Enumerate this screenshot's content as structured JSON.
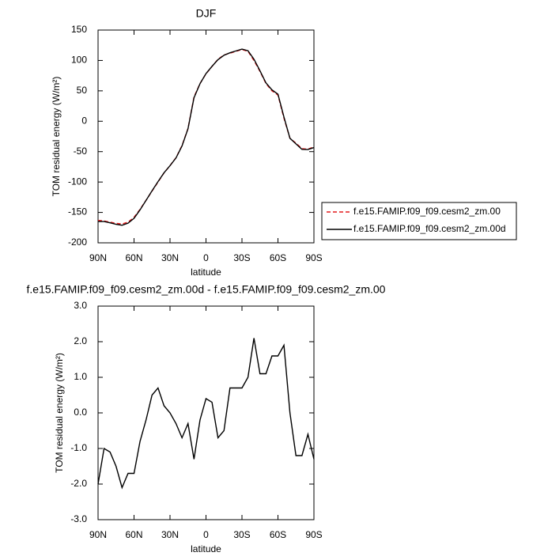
{
  "chart_data": [
    {
      "type": "line",
      "title": "DJF",
      "xlabel": "latitude",
      "ylabel": "TOM residual energy (W/m²)",
      "x": [
        90,
        85,
        80,
        75,
        70,
        65,
        60,
        55,
        50,
        45,
        40,
        35,
        30,
        25,
        20,
        15,
        10,
        5,
        0,
        -5,
        -10,
        -15,
        -20,
        -25,
        -30,
        -35,
        -40,
        -45,
        -50,
        -55,
        -60,
        -65,
        -70,
        -75,
        -80,
        -85,
        -90
      ],
      "xlim": [
        90,
        -90
      ],
      "xticks": [
        {
          "value": 90,
          "label": "90N"
        },
        {
          "value": 60,
          "label": "60N"
        },
        {
          "value": 30,
          "label": "30N"
        },
        0,
        {
          "value": -30,
          "label": "30S"
        },
        {
          "value": -60,
          "label": "60S"
        },
        {
          "value": -90,
          "label": "90S"
        }
      ],
      "ylim": [
        -200,
        150
      ],
      "yticks": [
        150,
        100,
        50,
        0,
        -50,
        -100,
        -150,
        -200
      ],
      "legend": "right",
      "series": [
        {
          "name": "f.e15.FAMIP.f09_f09.cesm2_zm.00",
          "color": "#e41a1c",
          "dash": true,
          "values": [
            -163,
            -164,
            -166,
            -168,
            -169,
            -166,
            -158,
            -145,
            -130,
            -115,
            -100,
            -85,
            -73,
            -60,
            -40,
            -12,
            40,
            62,
            78,
            90,
            102,
            109,
            112,
            115,
            118,
            115,
            100,
            82,
            62,
            50,
            43,
            5,
            -28,
            -36,
            -45,
            -46,
            -42
          ]
        },
        {
          "name": "f.e15.FAMIP.f09_f09.cesm2_zm.00d",
          "color": "#000000",
          "dash": false,
          "values": [
            -165,
            -165,
            -167.1,
            -169.5,
            -171.1,
            -167.7,
            -159.7,
            -145.8,
            -130.2,
            -114.5,
            -99.3,
            -84.8,
            -73,
            -60.3,
            -40.7,
            -12.3,
            38.7,
            61.8,
            78.4,
            90.3,
            101.3,
            108.5,
            112.7,
            115.7,
            118.7,
            116,
            102.1,
            83.1,
            63.1,
            51.6,
            44.6,
            6.9,
            -28,
            -37.2,
            -46.2,
            -46.6,
            -43.3
          ]
        }
      ]
    },
    {
      "type": "line",
      "title": "f.e15.FAMIP.f09_f09.cesm2_zm.00d - f.e15.FAMIP.f09_f09.cesm2_zm.00",
      "xlabel": "latitude",
      "ylabel": "TOM residual energy (W/m²)",
      "x": [
        90,
        85,
        80,
        75,
        70,
        65,
        60,
        55,
        50,
        45,
        40,
        35,
        30,
        25,
        20,
        15,
        10,
        5,
        0,
        -5,
        -10,
        -15,
        -20,
        -25,
        -30,
        -35,
        -40,
        -45,
        -50,
        -55,
        -60,
        -65,
        -70,
        -75,
        -80,
        -85,
        -90
      ],
      "xlim": [
        90,
        -90
      ],
      "xticks": [
        {
          "value": 90,
          "label": "90N"
        },
        {
          "value": 60,
          "label": "60N"
        },
        {
          "value": 30,
          "label": "30N"
        },
        0,
        {
          "value": -30,
          "label": "30S"
        },
        {
          "value": -60,
          "label": "60S"
        },
        {
          "value": -90,
          "label": "90S"
        }
      ],
      "ylim": [
        -3,
        3
      ],
      "yticks": [
        {
          "value": 3,
          "label": "3.0"
        },
        {
          "value": 2,
          "label": "2.0"
        },
        {
          "value": 1,
          "label": "1.0"
        },
        {
          "value": 0,
          "label": "0.0"
        },
        {
          "value": -1,
          "label": "-1.0"
        },
        {
          "value": -2,
          "label": "-2.0"
        },
        {
          "value": -3,
          "label": "-3.0"
        }
      ],
      "series": [
        {
          "name": null,
          "color": "#000000",
          "dash": false,
          "values": [
            -2.0,
            -1.0,
            -1.1,
            -1.5,
            -2.1,
            -1.7,
            -1.7,
            -0.8,
            -0.2,
            0.5,
            0.7,
            0.2,
            0.0,
            -0.3,
            -0.7,
            -0.3,
            -1.3,
            -0.2,
            0.4,
            0.3,
            -0.7,
            -0.5,
            0.7,
            0.7,
            0.7,
            1.0,
            2.1,
            1.1,
            1.1,
            1.6,
            1.6,
            1.9,
            0.0,
            -1.2,
            -1.2,
            -0.6,
            -1.3
          ]
        }
      ]
    }
  ]
}
